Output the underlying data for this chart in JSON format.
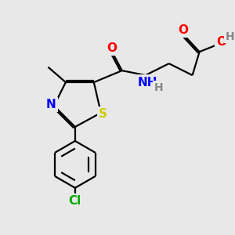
{
  "bg_color": "#e8e8e8",
  "atom_colors": {
    "O": "#ff0000",
    "N": "#0000ff",
    "S": "#cccc00",
    "Cl": "#00aa00",
    "C": "#000000",
    "H": "#888888"
  },
  "bond_color": "#000000",
  "bond_width": 1.6,
  "font_size_atom": 11,
  "font_size_H": 10
}
